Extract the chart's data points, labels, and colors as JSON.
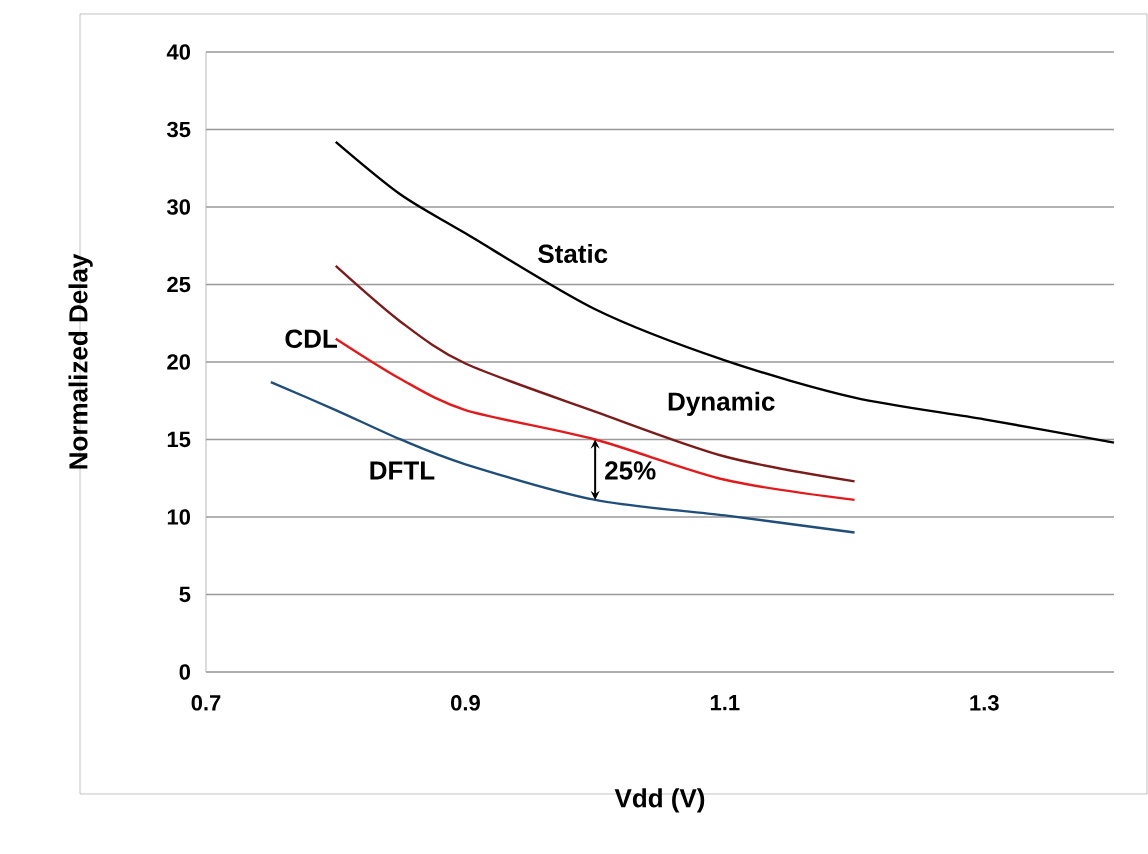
{
  "chart_data": {
    "type": "line",
    "xlabel": "Vdd (V)",
    "ylabel": "Normalized Delay",
    "xlim": [
      0.7,
      1.4
    ],
    "xticks": [
      0.7,
      0.9,
      1.1,
      1.3
    ],
    "ylim": [
      0,
      40
    ],
    "yticks": [
      0,
      5,
      10,
      15,
      20,
      25,
      30,
      35,
      40
    ],
    "grid": "y",
    "marker": "none",
    "line_style": "solid",
    "series": [
      {
        "name": "Static",
        "color": "#000000",
        "x": [
          0.8,
          0.85,
          0.9,
          1.0,
          1.1,
          1.2,
          1.3,
          1.4
        ],
        "values": [
          34.2,
          30.8,
          28.3,
          23.4,
          20.1,
          17.7,
          16.3,
          14.8
        ]
      },
      {
        "name": "Dynamic",
        "color": "#7b1c1c",
        "x": [
          0.8,
          0.85,
          0.9,
          1.0,
          1.1,
          1.2
        ],
        "values": [
          26.2,
          22.6,
          19.9,
          16.8,
          13.9,
          12.3
        ]
      },
      {
        "name": "CDL",
        "color": "#e31a1c",
        "x": [
          0.8,
          0.85,
          0.9,
          1.0,
          1.1,
          1.2
        ],
        "values": [
          21.5,
          18.9,
          16.9,
          15.0,
          12.4,
          11.1
        ]
      },
      {
        "name": "DFTL",
        "color": "#1f4e79",
        "x": [
          0.75,
          0.8,
          0.85,
          0.9,
          1.0,
          1.1,
          1.2
        ],
        "values": [
          18.7,
          16.9,
          15.0,
          13.4,
          11.1,
          10.1,
          9.0
        ]
      }
    ],
    "annotations": [
      "25%"
    ]
  }
}
